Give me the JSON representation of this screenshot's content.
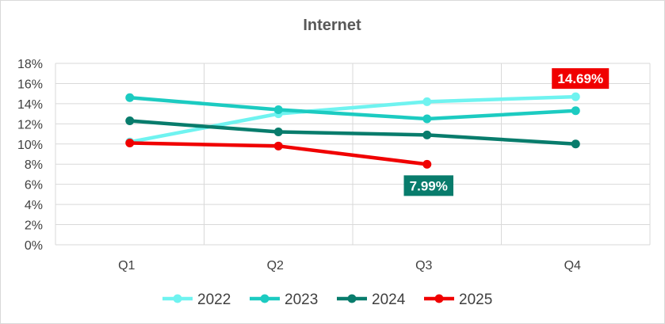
{
  "chart_data": {
    "type": "line",
    "title": "Internet",
    "xlabel": "",
    "ylabel": "",
    "categories": [
      "Q1",
      "Q2",
      "Q3",
      "Q4"
    ],
    "y_ticks": [
      "0%",
      "2%",
      "4%",
      "6%",
      "8%",
      "10%",
      "12%",
      "14%",
      "16%",
      "18%"
    ],
    "ylim": [
      0,
      18
    ],
    "grid": true,
    "legend_position": "bottom",
    "series": [
      {
        "name": "2022",
        "color": "#6ff3f0",
        "values": [
          10.2,
          13.0,
          14.2,
          14.69
        ]
      },
      {
        "name": "2023",
        "color": "#1ccbc1",
        "values": [
          14.6,
          13.4,
          12.5,
          13.3
        ]
      },
      {
        "name": "2024",
        "color": "#087c6c",
        "values": [
          12.3,
          11.2,
          10.9,
          10.0
        ]
      },
      {
        "name": "2025",
        "color": "#f00000",
        "values": [
          10.1,
          9.8,
          7.99,
          null
        ]
      }
    ],
    "annotations": [
      {
        "text": "14.69%",
        "series": "2022",
        "category": "Q4",
        "background": "#f00000"
      },
      {
        "text": "7.99%",
        "series": "2025",
        "category": "Q3",
        "background": "#087c6c"
      }
    ]
  }
}
